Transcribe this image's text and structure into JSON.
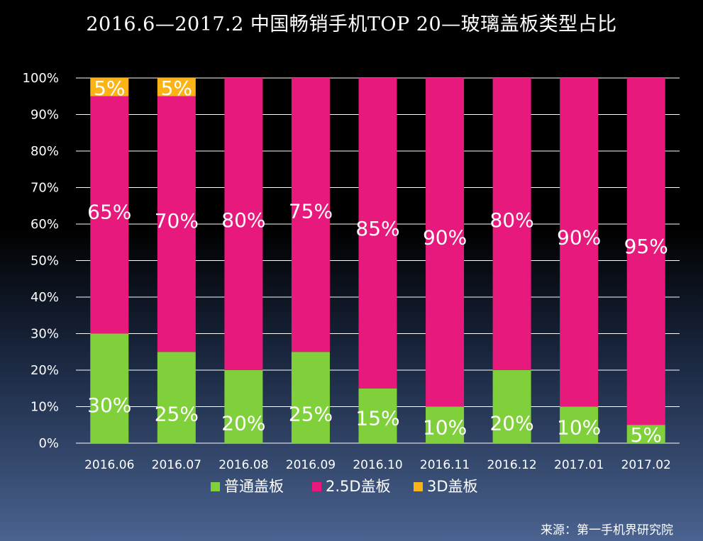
{
  "title": "2016.6—2017.2 中国畅销手机TOP 20—玻璃盖板类型占比",
  "source": "来源：第一手机界研究院",
  "colors": {
    "ordinary": "#7fd03a",
    "d25": "#e8197c",
    "d3": "#fcb315",
    "grid": "#ffffff",
    "text": "#ffffff"
  },
  "chart_data": {
    "type": "bar",
    "stacked": true,
    "title": "2016.6—2017.2 中国畅销手机TOP 20—玻璃盖板类型占比",
    "categories": [
      "2016.06",
      "2016.07",
      "2016.08",
      "2016.09",
      "2016.10",
      "2016.11",
      "2016.12",
      "2017.01",
      "2017.02"
    ],
    "series": [
      {
        "name": "普通盖板",
        "values": [
          30,
          25,
          20,
          25,
          15,
          10,
          20,
          10,
          5
        ]
      },
      {
        "name": "2.5D盖板",
        "values": [
          65,
          70,
          80,
          75,
          85,
          90,
          80,
          90,
          95
        ]
      },
      {
        "name": "3D盖板",
        "values": [
          5,
          5,
          0,
          0,
          0,
          0,
          0,
          0,
          0
        ]
      }
    ],
    "ylim": [
      0,
      100
    ],
    "y_ticks": [
      "0%",
      "10%",
      "20%",
      "30%",
      "40%",
      "50%",
      "60%",
      "70%",
      "80%",
      "90%",
      "100%"
    ],
    "grid": true,
    "legend": "bottom"
  }
}
